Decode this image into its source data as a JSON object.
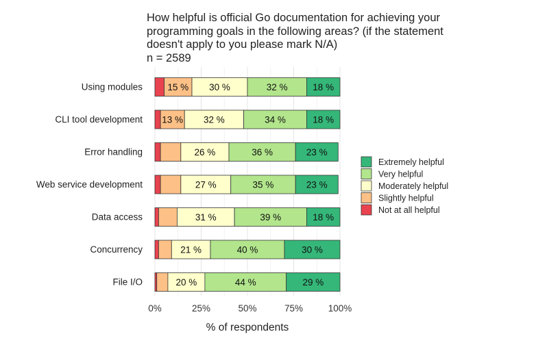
{
  "chart_data": {
    "type": "bar",
    "orientation": "horizontal",
    "stacked": true,
    "title": "How helpful is official Go documentation for achieving your programming goals in the following areas? (if the statement doesn't apply to you please mark N/A)",
    "subtitle": "n = 2589",
    "xlabel": "% of respondents",
    "ylabel": "",
    "xlim": [
      0,
      100
    ],
    "xticks": [
      0,
      25,
      50,
      75,
      100
    ],
    "xtick_labels": [
      "0%",
      "25%",
      "50%",
      "75%",
      "100%"
    ],
    "grid": true,
    "legend_position": "right",
    "categories": [
      "Using modules",
      "CLI tool development",
      "Error handling",
      "Web service development",
      "Data access",
      "Concurrency",
      "File I/O"
    ],
    "series": [
      {
        "name": "Not at all helpful",
        "color": "#e8434e",
        "values": [
          5,
          3,
          3,
          3,
          2,
          2,
          1
        ],
        "labels": [
          "",
          "",
          "",
          "",
          "",
          "",
          ""
        ]
      },
      {
        "name": "Slightly helpful",
        "color": "#fdc086",
        "values": [
          15,
          13,
          11,
          11,
          10,
          7,
          6
        ],
        "labels": [
          "15 %",
          "13 %",
          "",
          "",
          "",
          "",
          ""
        ]
      },
      {
        "name": "Moderately helpful",
        "color": "#ffffcc",
        "values": [
          30,
          32,
          26,
          27,
          31,
          21,
          20
        ],
        "labels": [
          "30 %",
          "32 %",
          "26 %",
          "27 %",
          "31 %",
          "21 %",
          "20 %"
        ]
      },
      {
        "name": "Very helpful",
        "color": "#b2e58c",
        "values": [
          32,
          34,
          36,
          35,
          39,
          40,
          44
        ],
        "labels": [
          "32 %",
          "34 %",
          "36 %",
          "35 %",
          "39 %",
          "40 %",
          "44 %"
        ]
      },
      {
        "name": "Extremely helpful",
        "color": "#35b779",
        "values": [
          18,
          18,
          23,
          23,
          18,
          30,
          29
        ],
        "labels": [
          "18 %",
          "18 %",
          "23 %",
          "23 %",
          "18 %",
          "30 %",
          "29 %"
        ]
      }
    ],
    "legend_order": [
      "Extremely helpful",
      "Very helpful",
      "Moderately helpful",
      "Slightly helpful",
      "Not at all helpful"
    ]
  }
}
